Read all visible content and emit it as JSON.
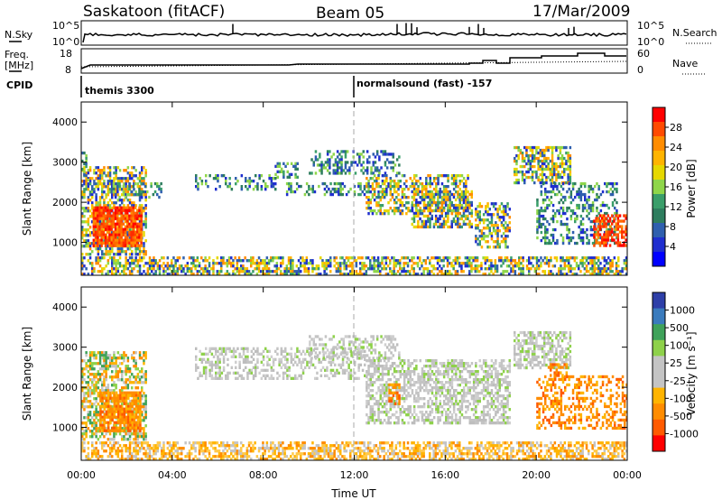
{
  "header": {
    "radar": "Saskatoon (fitACF)",
    "beam": "Beam 05",
    "date": "17/Mar/2009"
  },
  "status_panels": {
    "nsky": {
      "label": "N.Sky",
      "ylim_labels": [
        "10^5",
        "10^0"
      ],
      "right_label": "N.Search",
      "right_ylim_labels": [
        "10^5",
        "10^0"
      ]
    },
    "freq": {
      "label_line1": "Freq.",
      "label_line2": "[MHz]",
      "ylim_labels": [
        "18",
        "8"
      ],
      "right_label": "Nave",
      "right_ylim_labels": [
        "60",
        "0"
      ]
    },
    "cpid": {
      "label": "CPID",
      "modes": [
        {
          "name": "themis 3300",
          "start_hour": 0
        },
        {
          "name": "normalsound (fast) -157",
          "start_hour": 12
        }
      ]
    }
  },
  "chart_data": [
    {
      "type": "heatmap",
      "name": "power",
      "ylabel": "Slant Range [km]",
      "xlabel": "",
      "x_range_hours": [
        0,
        24
      ],
      "ylim": [
        180,
        4500
      ],
      "yticks": [
        1000,
        2000,
        3000,
        4000
      ],
      "colorbar": {
        "label": "Power [dB]",
        "ticks": [
          "28",
          "24",
          "20",
          "16",
          "12",
          "8",
          "4"
        ],
        "colors": [
          "#ff0000",
          "#ff4a00",
          "#ff8c00",
          "#ffb400",
          "#e6d800",
          "#8fd64a",
          "#3a9e6a",
          "#2e7d5e",
          "#2f5fae",
          "#1f2ecf",
          "#0000ff"
        ]
      },
      "regions": [
        {
          "t": [
            0.0,
            2.8
          ],
          "r": [
            700,
            2900
          ],
          "palette": "mixed",
          "density": 0.55
        },
        {
          "t": [
            0.5,
            2.6
          ],
          "r": [
            900,
            1900
          ],
          "palette": "hot",
          "density": 0.85
        },
        {
          "t": [
            0.0,
            0.3
          ],
          "r": [
            2400,
            3400
          ],
          "palette": "cool",
          "density": 0.3
        },
        {
          "t": [
            1.2,
            3.5
          ],
          "r": [
            2100,
            2500
          ],
          "palette": "cool",
          "density": 0.35
        },
        {
          "t": [
            0.0,
            24.0
          ],
          "r": [
            180,
            650
          ],
          "palette": "ground",
          "density": 0.55
        },
        {
          "t": [
            5.0,
            8.5
          ],
          "r": [
            2300,
            2700
          ],
          "palette": "cool",
          "density": 0.3
        },
        {
          "t": [
            8.5,
            9.5
          ],
          "r": [
            2600,
            3000
          ],
          "palette": "cool",
          "density": 0.3
        },
        {
          "t": [
            9.0,
            12.5
          ],
          "r": [
            2200,
            2500
          ],
          "palette": "cool",
          "density": 0.35
        },
        {
          "t": [
            10.0,
            14.0
          ],
          "r": [
            2700,
            3300
          ],
          "palette": "cool",
          "density": 0.35
        },
        {
          "t": [
            12.5,
            17.0
          ],
          "r": [
            1700,
            2700
          ],
          "palette": "mixed",
          "density": 0.5
        },
        {
          "t": [
            14.5,
            17.2
          ],
          "r": [
            1400,
            2300
          ],
          "palette": "mixed",
          "density": 0.55
        },
        {
          "t": [
            17.3,
            18.8
          ],
          "r": [
            900,
            2000
          ],
          "palette": "mixed",
          "density": 0.55
        },
        {
          "t": [
            19.0,
            21.5
          ],
          "r": [
            2500,
            3400
          ],
          "palette": "mixed",
          "density": 0.6
        },
        {
          "t": [
            20.0,
            23.5
          ],
          "r": [
            1000,
            2500
          ],
          "palette": "cool",
          "density": 0.35
        },
        {
          "t": [
            22.5,
            24.0
          ],
          "r": [
            900,
            1700
          ],
          "palette": "hot",
          "density": 0.6
        }
      ]
    },
    {
      "type": "heatmap",
      "name": "velocity",
      "ylabel": "Slant Range [km]",
      "xlabel": "Time UT",
      "x_range_hours": [
        0,
        24
      ],
      "xticks": [
        "00:00",
        "04:00",
        "08:00",
        "12:00",
        "16:00",
        "20:00",
        "00:00"
      ],
      "ylim": [
        180,
        4500
      ],
      "yticks": [
        1000,
        2000,
        3000,
        4000
      ],
      "colorbar": {
        "label": "Velocity [m s⁻¹]",
        "ticks": [
          "1000",
          "500",
          "100",
          "25",
          "-25",
          "-100",
          "-500",
          "-1000"
        ],
        "colors": [
          "#2e3fa8",
          "#3a7bbd",
          "#3fa25a",
          "#8ed14a",
          "#c4c4c4",
          "#c4c4c4",
          "#ffb400",
          "#ff8c00",
          "#ff5a00",
          "#ff0000"
        ]
      },
      "regions": [
        {
          "t": [
            0.0,
            2.8
          ],
          "r": [
            700,
            2900
          ],
          "palette": "velmix",
          "density": 0.55
        },
        {
          "t": [
            0.8,
            2.6
          ],
          "r": [
            900,
            1900
          ],
          "palette": "velneg",
          "density": 0.8
        },
        {
          "t": [
            0.0,
            24.0
          ],
          "r": [
            180,
            650
          ],
          "palette": "velground",
          "density": 0.55
        },
        {
          "t": [
            5.0,
            12.5
          ],
          "r": [
            2200,
            3000
          ],
          "palette": "gray",
          "density": 0.4
        },
        {
          "t": [
            10.0,
            14.0
          ],
          "r": [
            2700,
            3300
          ],
          "palette": "gray",
          "density": 0.4
        },
        {
          "t": [
            12.5,
            18.8
          ],
          "r": [
            1100,
            2700
          ],
          "palette": "gray",
          "density": 0.55
        },
        {
          "t": [
            19.0,
            21.5
          ],
          "r": [
            2500,
            3400
          ],
          "palette": "gray",
          "density": 0.6
        },
        {
          "t": [
            20.5,
            21.3
          ],
          "r": [
            2200,
            2600
          ],
          "palette": "velneg",
          "density": 0.5
        },
        {
          "t": [
            20.0,
            24.0
          ],
          "r": [
            1000,
            2300
          ],
          "palette": "velneg",
          "density": 0.4
        },
        {
          "t": [
            13.5,
            14.0
          ],
          "r": [
            1600,
            2100
          ],
          "palette": "velneg",
          "density": 0.5
        }
      ]
    }
  ]
}
